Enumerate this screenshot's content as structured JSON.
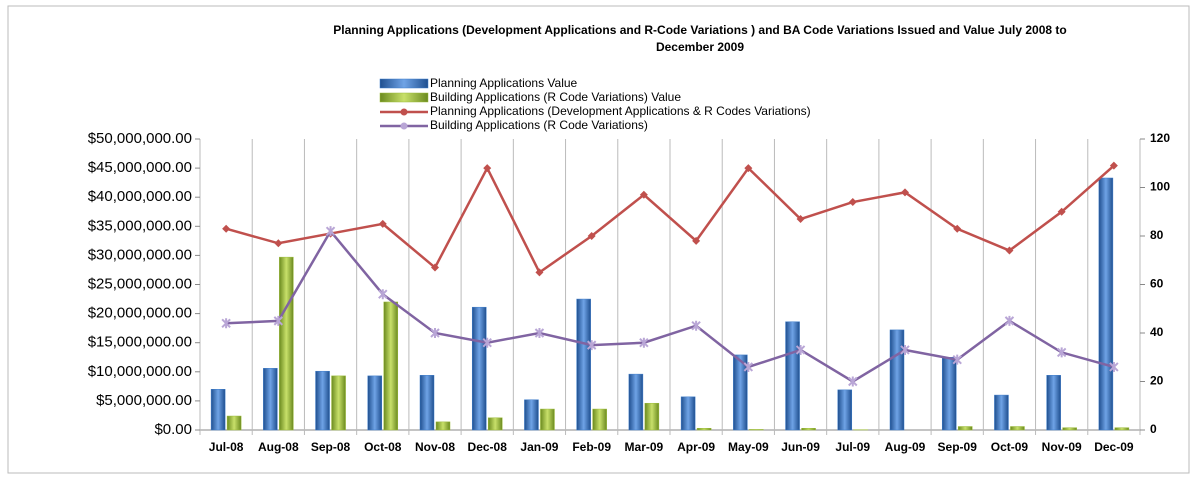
{
  "chart_data": {
    "type": "bar_line",
    "title": [
      "Planning Applications (Development Applications and R-Code Variations ) and BA Code Variations Issued and Value July 2008 to",
      "December 2009"
    ],
    "categories": [
      "Jul-08",
      "Aug-08",
      "Sep-08",
      "Oct-08",
      "Nov-08",
      "Dec-08",
      "Jan-09",
      "Feb-09",
      "Mar-09",
      "Apr-09",
      "May-09",
      "Jun-09",
      "Jul-09",
      "Aug-09",
      "Sep-09",
      "Oct-09",
      "Nov-09",
      "Dec-09"
    ],
    "series": [
      {
        "name": "Planning Applications Value",
        "color": "#3d7cc9",
        "type": "bar",
        "axis": "y",
        "values": [
          7000000,
          10600000,
          10100000,
          9300000,
          9400000,
          21100000,
          5200000,
          22500000,
          9600000,
          5700000,
          12900000,
          18600000,
          6900000,
          17200000,
          12500000,
          6000000,
          9400000,
          43300000
        ]
      },
      {
        "name": "Building Applications  (R Code Variations) Value",
        "color": "#9bbb3a",
        "type": "bar",
        "axis": "y",
        "values": [
          2400000,
          29700000,
          9300000,
          22000000,
          1400000,
          2100000,
          3600000,
          3600000,
          4600000,
          300000,
          100000,
          300000,
          50000,
          0,
          600000,
          600000,
          400000,
          400000
        ]
      },
      {
        "name": "Planning Applications  (Development Applications & R Codes Variations)",
        "color": "#c0504d",
        "type": "line",
        "axis": "y2",
        "values": [
          83,
          77,
          81,
          85,
          67,
          108,
          65,
          80,
          97,
          78,
          108,
          87,
          94,
          98,
          83,
          74,
          90,
          109
        ]
      },
      {
        "name": "Building Applications  (R Code Variations)",
        "color": "#8064a2",
        "type": "line",
        "axis": "y2",
        "values": [
          44,
          45,
          82,
          56,
          40,
          36,
          40,
          35,
          36,
          43,
          26,
          33,
          20,
          33,
          29,
          45,
          32,
          26
        ]
      }
    ],
    "ylim": [
      0,
      50000000
    ],
    "yticks": [
      {
        "value": 0,
        "label": "$0.00"
      },
      {
        "value": 5000000,
        "label": "$5,000,000.00"
      },
      {
        "value": 10000000,
        "label": "$10,000,000.00"
      },
      {
        "value": 15000000,
        "label": "$15,000,000.00"
      },
      {
        "value": 20000000,
        "label": "$20,000,000.00"
      },
      {
        "value": 25000000,
        "label": "$25,000,000.00"
      },
      {
        "value": 30000000,
        "label": "$30,000,000.00"
      },
      {
        "value": 35000000,
        "label": "$35,000,000.00"
      },
      {
        "value": 40000000,
        "label": "$40,000,000.00"
      },
      {
        "value": 45000000,
        "label": "$45,000,000.00"
      },
      {
        "value": 50000000,
        "label": "$50,000,000.00"
      }
    ],
    "y2lim": [
      0,
      120
    ],
    "y2ticks": [
      0,
      20,
      40,
      60,
      80,
      100,
      120
    ],
    "grid": false
  }
}
